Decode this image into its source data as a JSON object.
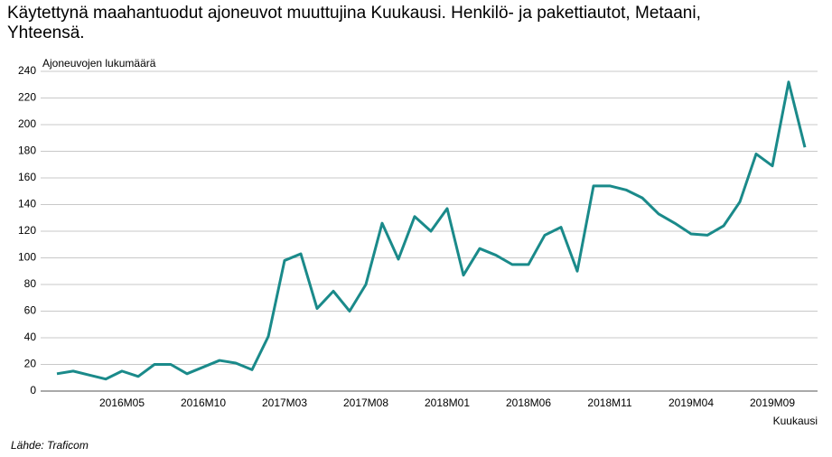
{
  "chart_data": {
    "type": "line",
    "title": "Käytettynä maahantuodut ajoneuvot muuttujina Kuukausi. Henkilö- ja pakettiautot, Metaani, Yhteensä.",
    "y_label": "Ajoneuvojen lukumäärä",
    "x_label": "Kuukausi",
    "source": "Lähde: Traficom",
    "categories": [
      null,
      null,
      null,
      null,
      "2016M05",
      null,
      null,
      null,
      null,
      "2016M10",
      null,
      null,
      null,
      null,
      "2017M03",
      null,
      null,
      null,
      null,
      "2017M08",
      null,
      null,
      null,
      null,
      "2018M01",
      null,
      null,
      null,
      null,
      "2018M06",
      null,
      null,
      null,
      null,
      "2018M11",
      null,
      null,
      null,
      null,
      "2019M04",
      null,
      null,
      null,
      null,
      "2019M09",
      null,
      null
    ],
    "series": [
      {
        "name": "Yhteensä",
        "color": "#1a8a8a",
        "values": [
          13,
          15,
          12,
          9,
          15,
          11,
          20,
          20,
          13,
          18,
          23,
          21,
          16,
          41,
          98,
          103,
          62,
          75,
          60,
          80,
          126,
          99,
          131,
          120,
          137,
          87,
          107,
          102,
          95,
          95,
          117,
          123,
          90,
          154,
          154,
          151,
          145,
          133,
          126,
          118,
          117,
          124,
          142,
          178,
          169,
          232,
          183
        ]
      }
    ],
    "ylim": [
      0,
      240
    ],
    "yticks": [
      0,
      20,
      40,
      60,
      80,
      100,
      120,
      140,
      160,
      180,
      200,
      220,
      240
    ],
    "grid": true
  }
}
